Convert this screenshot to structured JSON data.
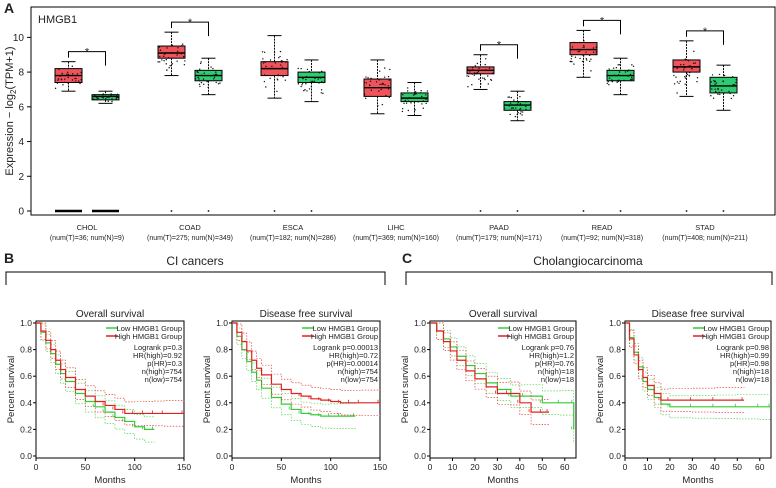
{
  "colors": {
    "tumor": "#f0545a",
    "normal": "#2ecc71",
    "sig": "#e03030",
    "km_low": "#33cc33",
    "km_high": "#e02020"
  },
  "panel_a": {
    "label": "A",
    "gene": "HMGB1",
    "ylabel_main": "Expression − log",
    "ylabel_sub": "2",
    "ylabel_tail": "(TPM+1)",
    "sig_mark": "*"
  },
  "panel_b": {
    "label": "B",
    "title": "CI cancers"
  },
  "panel_c": {
    "label": "C",
    "title": "Cholangiocarcinoma"
  },
  "chart_data": [
    {
      "type": "box",
      "title": "HMGB1",
      "ylabel": "Expression − log2(TPM+1)",
      "ylim": [
        0,
        11
      ],
      "yticks": [
        "0",
        "2",
        "4",
        "6",
        "8",
        "10"
      ],
      "categories": [
        "CHOL",
        "COAD",
        "ESCA",
        "LIHC",
        "PAAD",
        "READ",
        "STAD"
      ],
      "sublabels": [
        "(num(T)=36; num(N)=9)",
        "(num(T)=275; num(N)=349)",
        "(num(T)=182; num(N)=286)",
        "(num(T)=369; num(N)=160)",
        "(num(T)=179; num(N)=171)",
        "(num(T)=92; num(N)=318)",
        "(num(T)=408; num(N)=211)"
      ],
      "significant": [
        true,
        true,
        false,
        false,
        true,
        true,
        true
      ],
      "series": [
        {
          "name": "Tumor",
          "boxes": [
            {
              "min": 6.9,
              "q1": 7.4,
              "median": 7.8,
              "q3": 8.2,
              "max": 8.6
            },
            {
              "min": 7.8,
              "q1": 8.8,
              "median": 9.1,
              "q3": 9.5,
              "max": 10.3
            },
            {
              "min": 6.5,
              "q1": 7.8,
              "median": 8.2,
              "q3": 8.6,
              "max": 10.1
            },
            {
              "min": 5.6,
              "q1": 6.6,
              "median": 7.1,
              "q3": 7.6,
              "max": 8.7
            },
            {
              "min": 7.0,
              "q1": 7.9,
              "median": 8.1,
              "q3": 8.3,
              "max": 9.0
            },
            {
              "min": 7.7,
              "q1": 9.0,
              "median": 9.3,
              "q3": 9.7,
              "max": 10.4
            },
            {
              "min": 6.6,
              "q1": 8.0,
              "median": 8.3,
              "q3": 8.7,
              "max": 9.8
            }
          ]
        },
        {
          "name": "Normal",
          "boxes": [
            {
              "min": 6.2,
              "q1": 6.4,
              "median": 6.6,
              "q3": 6.7,
              "max": 6.9
            },
            {
              "min": 6.7,
              "q1": 7.5,
              "median": 7.8,
              "q3": 8.1,
              "max": 8.8
            },
            {
              "min": 6.3,
              "q1": 7.4,
              "median": 7.7,
              "q3": 8.0,
              "max": 8.7
            },
            {
              "min": 5.5,
              "q1": 6.3,
              "median": 6.5,
              "q3": 6.8,
              "max": 7.4
            },
            {
              "min": 5.2,
              "q1": 5.8,
              "median": 6.1,
              "q3": 6.3,
              "max": 6.9
            },
            {
              "min": 6.7,
              "q1": 7.5,
              "median": 7.8,
              "q3": 8.1,
              "max": 8.8
            },
            {
              "min": 5.8,
              "q1": 6.8,
              "median": 7.2,
              "q3": 7.7,
              "max": 8.4
            }
          ]
        }
      ]
    },
    {
      "type": "line",
      "title": "Overall survival",
      "xlabel": "Months",
      "ylabel": "Percent survival",
      "xlim": [
        0,
        150
      ],
      "ylim": [
        0,
        1
      ],
      "xticks": [
        "0",
        "50",
        "100",
        "150"
      ],
      "yticks": [
        "0.0",
        "0.2",
        "0.4",
        "0.6",
        "0.8",
        "1.0"
      ],
      "legend": [
        "Low HMGB1 Group",
        "High HMGB1 Group"
      ],
      "stats": [
        "Logrank p=0.3",
        "HR(high)=0.92",
        "p(HR)=0.3",
        "n(high)=754",
        "n(low)=754"
      ],
      "series": [
        {
          "name": "Low HMGB1 Group",
          "x": [
            0,
            5,
            10,
            15,
            20,
            25,
            30,
            40,
            50,
            60,
            70,
            80,
            90,
            100,
            110,
            120
          ],
          "y": [
            1,
            0.93,
            0.85,
            0.77,
            0.69,
            0.62,
            0.56,
            0.47,
            0.41,
            0.37,
            0.33,
            0.29,
            0.26,
            0.22,
            0.2,
            0.2
          ]
        },
        {
          "name": "High HMGB1 Group",
          "x": [
            0,
            5,
            10,
            15,
            20,
            25,
            30,
            40,
            50,
            60,
            70,
            80,
            90,
            100,
            110,
            120,
            130,
            150
          ],
          "y": [
            1,
            0.94,
            0.87,
            0.8,
            0.72,
            0.65,
            0.59,
            0.5,
            0.45,
            0.41,
            0.38,
            0.35,
            0.32,
            0.32,
            0.32,
            0.32,
            0.32,
            0.32
          ]
        }
      ]
    },
    {
      "type": "line",
      "title": "Disease free survival",
      "xlabel": "Months",
      "ylabel": "Percent survival",
      "xlim": [
        0,
        150
      ],
      "ylim": [
        0,
        1
      ],
      "xticks": [
        "0",
        "50",
        "100",
        "150"
      ],
      "yticks": [
        "0.0",
        "0.2",
        "0.4",
        "0.6",
        "0.8",
        "1.0"
      ],
      "legend": [
        "Low HMGB1 Group",
        "High HMGB1 Group"
      ],
      "stats": [
        "Logrank p=0.00013",
        "HR(high)=0.72",
        "p(HR)=0.00014",
        "n(high)=754",
        "n(low)=754"
      ],
      "series": [
        {
          "name": "Low HMGB1 Group",
          "x": [
            0,
            5,
            10,
            15,
            20,
            25,
            30,
            40,
            50,
            60,
            70,
            80,
            90,
            100,
            110,
            125
          ],
          "y": [
            1,
            0.9,
            0.8,
            0.71,
            0.63,
            0.57,
            0.51,
            0.44,
            0.39,
            0.35,
            0.32,
            0.31,
            0.3,
            0.3,
            0.3,
            0.3
          ]
        },
        {
          "name": "High HMGB1 Group",
          "x": [
            0,
            5,
            10,
            15,
            20,
            25,
            30,
            40,
            50,
            60,
            70,
            80,
            90,
            100,
            110,
            120,
            130,
            150
          ],
          "y": [
            1,
            0.93,
            0.86,
            0.79,
            0.72,
            0.66,
            0.61,
            0.54,
            0.5,
            0.47,
            0.45,
            0.43,
            0.42,
            0.41,
            0.4,
            0.4,
            0.4,
            0.4
          ]
        }
      ]
    },
    {
      "type": "line",
      "title": "Overall survival",
      "xlabel": "Months",
      "ylabel": "Percent survival",
      "xlim": [
        0,
        65
      ],
      "ylim": [
        0,
        1
      ],
      "xticks": [
        "0",
        "10",
        "20",
        "30",
        "40",
        "50",
        "60"
      ],
      "yticks": [
        "0.0",
        "0.2",
        "0.4",
        "0.6",
        "0.8",
        "1.0"
      ],
      "legend": [
        "Low HMGB1 Group",
        "High HMGB1 Group"
      ],
      "stats": [
        "Logrank p=0.76",
        "HR(high)=1.2",
        "p(HR)=0.76",
        "n(high)=18",
        "n(low)=18"
      ],
      "series": [
        {
          "name": "Low HMGB1 Group",
          "x": [
            0,
            3,
            6,
            9,
            12,
            16,
            20,
            25,
            30,
            36,
            42,
            50,
            58,
            64,
            64
          ],
          "y": [
            1,
            0.94,
            0.88,
            0.82,
            0.75,
            0.68,
            0.62,
            0.55,
            0.5,
            0.45,
            0.45,
            0.4,
            0.4,
            0.4,
            0.2
          ]
        },
        {
          "name": "High HMGB1 Group",
          "x": [
            0,
            3,
            6,
            9,
            12,
            16,
            20,
            25,
            30,
            35,
            40,
            45,
            50,
            53
          ],
          "y": [
            1,
            0.94,
            0.86,
            0.79,
            0.72,
            0.64,
            0.58,
            0.52,
            0.47,
            0.47,
            0.4,
            0.33,
            0.33,
            0.33
          ]
        }
      ]
    },
    {
      "type": "line",
      "title": "Disease free survival",
      "xlabel": "Months",
      "ylabel": "Percent survival",
      "xlim": [
        0,
        65
      ],
      "ylim": [
        0,
        1
      ],
      "xticks": [
        "0",
        "10",
        "20",
        "30",
        "40",
        "50",
        "60"
      ],
      "yticks": [
        "0.0",
        "0.2",
        "0.4",
        "0.6",
        "0.8",
        "1.0"
      ],
      "legend": [
        "Low HMGB1 Group",
        "High HMGB1 Group"
      ],
      "stats": [
        "Logrank p=0.98",
        "HR(high)=0.99",
        "p(HR)=0.98",
        "n(high)=18",
        "n(low)=18"
      ],
      "series": [
        {
          "name": "Low HMGB1 Group",
          "x": [
            0,
            2,
            4,
            6,
            8,
            10,
            13,
            16,
            20,
            30,
            40,
            50,
            60,
            65
          ],
          "y": [
            1,
            0.89,
            0.78,
            0.67,
            0.56,
            0.5,
            0.44,
            0.39,
            0.37,
            0.37,
            0.37,
            0.37,
            0.37,
            0.37
          ]
        },
        {
          "name": "High HMGB1 Group",
          "x": [
            0,
            2,
            4,
            6,
            8,
            10,
            13,
            16,
            20,
            30,
            40,
            53
          ],
          "y": [
            1,
            0.88,
            0.76,
            0.65,
            0.59,
            0.53,
            0.47,
            0.42,
            0.42,
            0.42,
            0.42,
            0.42
          ]
        }
      ]
    }
  ]
}
